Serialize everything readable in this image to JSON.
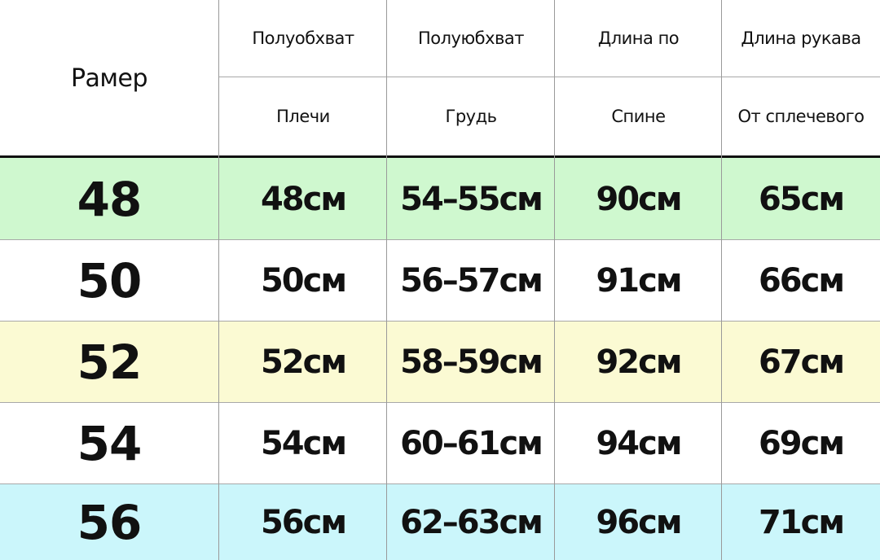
{
  "header": {
    "size_label": "Рамер",
    "columns": [
      {
        "top": "Полуобхват",
        "bottom": "Плечи"
      },
      {
        "top": "Полуюбхват",
        "bottom": "Грудь"
      },
      {
        "top": "Длина по",
        "bottom": "Спине"
      },
      {
        "top": "Длина рукава",
        "bottom": "От сплечевого"
      }
    ]
  },
  "rows": [
    {
      "size": "48",
      "values": [
        "48см",
        "54–55см",
        "90см",
        "65см"
      ],
      "color": "#cff8cf"
    },
    {
      "size": "50",
      "values": [
        "50см",
        "56–57см",
        "91см",
        "66см"
      ],
      "color": "#ffffff"
    },
    {
      "size": "52",
      "values": [
        "52см",
        "58–59см",
        "92см",
        "67см"
      ],
      "color": "#fbfad3"
    },
    {
      "size": "54",
      "values": [
        "54см",
        "60–61см",
        "94см",
        "69см"
      ],
      "color": "#ffffff"
    },
    {
      "size": "56",
      "values": [
        "56см",
        "62–63см",
        "96см",
        "71см"
      ],
      "color": "#cbf6fb"
    }
  ]
}
